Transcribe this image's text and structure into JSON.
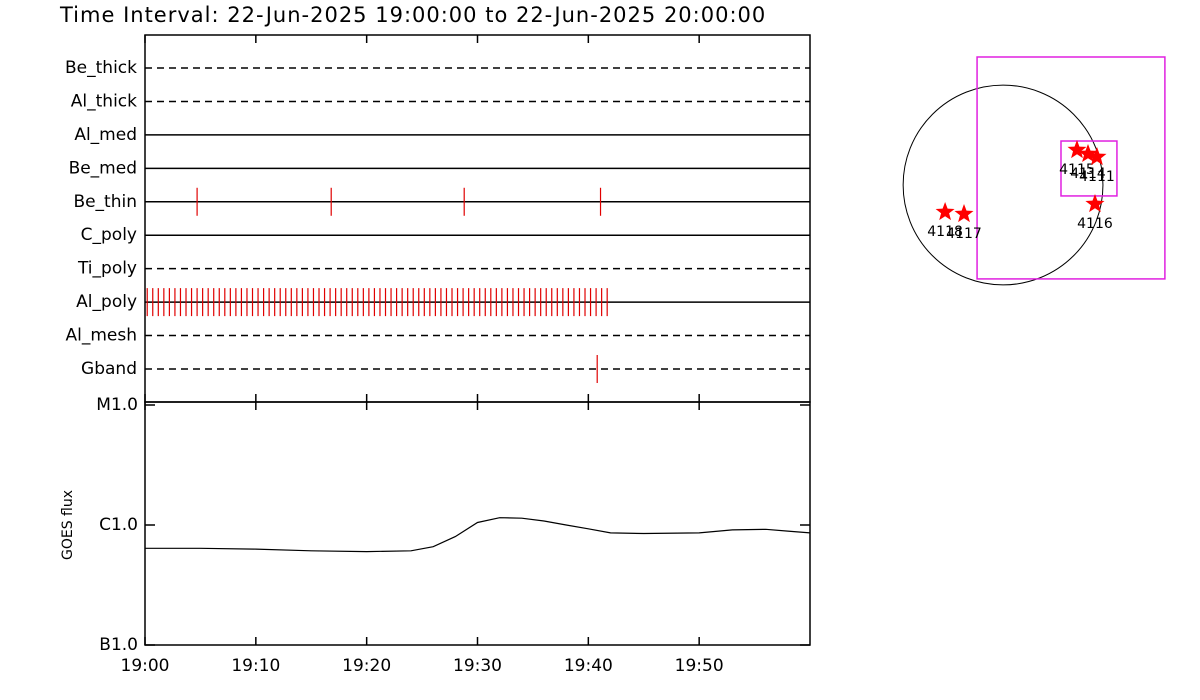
{
  "chart_data": [
    {
      "type": "timeline",
      "title": "Time Interval: 22-Jun-2025 19:00:00 to 22-Jun-2025 20:00:00",
      "categories": [
        "Be_thick",
        "Al_thick",
        "Al_med",
        "Be_med",
        "Be_thin",
        "C_poly",
        "Ti_poly",
        "Al_poly",
        "Al_mesh",
        "Gband"
      ],
      "line_styles": [
        "dashed",
        "dashed",
        "solid",
        "solid",
        "solid",
        "solid",
        "dashed",
        "solid",
        "dashed",
        "dashed"
      ],
      "events": [
        [],
        [],
        [],
        [],
        [
          4.7,
          16.8,
          28.8,
          41.1
        ],
        [],
        [],
        [
          0.2,
          0.7,
          1.2,
          1.7,
          2.2,
          2.7,
          3.2,
          3.7,
          4.2,
          4.7,
          5.2,
          5.7,
          6.2,
          6.7,
          7.2,
          7.7,
          8.2,
          8.7,
          9.2,
          9.7,
          10.2,
          10.7,
          11.2,
          11.7,
          12.2,
          12.7,
          13.2,
          13.7,
          14.2,
          14.7,
          15.2,
          15.7,
          16.2,
          16.7,
          17.2,
          17.7,
          18.2,
          18.7,
          19.2,
          19.7,
          20.2,
          20.7,
          21.2,
          21.7,
          22.2,
          22.7,
          23.2,
          23.7,
          24.2,
          24.7,
          25.2,
          25.7,
          26.2,
          26.7,
          27.2,
          27.7,
          28.2,
          28.7,
          29.2,
          29.7,
          30.2,
          30.7,
          31.2,
          31.7,
          32.2,
          32.7,
          33.2,
          33.7,
          34.2,
          34.7,
          35.2,
          35.7,
          36.2,
          36.7,
          37.2,
          37.7,
          38.2,
          38.7,
          39.2,
          39.7,
          40.2,
          40.7,
          41.2,
          41.7
        ],
        [],
        [
          40.8
        ]
      ],
      "color": "#e00000"
    },
    {
      "type": "line",
      "ylabel": "GOES flux",
      "x": [
        0,
        5,
        10,
        15,
        20,
        24,
        26,
        28,
        30,
        32,
        34,
        36,
        38,
        40,
        42,
        45,
        50,
        53,
        56,
        58,
        60
      ],
      "values": [
        6.4e-07,
        6.4e-07,
        6.3e-07,
        6.1e-07,
        6e-07,
        6.1e-07,
        6.6e-07,
        8e-07,
        1.05e-06,
        1.15e-06,
        1.14e-06,
        1.08e-06,
        1e-06,
        9.3e-07,
        8.6e-07,
        8.5e-07,
        8.6e-07,
        9.1e-07,
        9.2e-07,
        8.9e-07,
        8.6e-07
      ],
      "color": "#000000",
      "log_scale": true,
      "xlim": [
        0,
        60
      ],
      "xticks": [
        {
          "value": 0,
          "label": "19:00"
        },
        {
          "value": 10,
          "label": "19:10"
        },
        {
          "value": 20,
          "label": "19:20"
        },
        {
          "value": 30,
          "label": "19:30"
        },
        {
          "value": 40,
          "label": "19:40"
        },
        {
          "value": 50,
          "label": "19:50"
        }
      ],
      "ylim": [
        1e-07,
        1e-05
      ],
      "yticks": [
        {
          "value": 1e-07,
          "label": "B1.0"
        },
        {
          "value": 1e-06,
          "label": "C1.0"
        },
        {
          "value": 1e-05,
          "label": "M1.0"
        }
      ]
    },
    {
      "type": "map",
      "solar_radius": 950,
      "xlim": [
        -1170,
        1540
      ],
      "ylim": [
        -1378,
        1378
      ],
      "fov": [
        {
          "x": 646,
          "y": 162,
          "width": 1786,
          "height": 2109
        },
        {
          "x": 817,
          "y": 157,
          "width": 532,
          "height": 522
        }
      ],
      "fov_color": "#e020e0",
      "regions": {
        "names": [
          "4115",
          "4114",
          "4111",
          "4116",
          "4118",
          "4117"
        ],
        "x": [
          703,
          808,
          893,
          874,
          -551,
          -371
        ],
        "y": [
          333,
          295,
          266,
          -181,
          -257,
          -276
        ]
      },
      "marker_color": "#ff0000"
    }
  ]
}
